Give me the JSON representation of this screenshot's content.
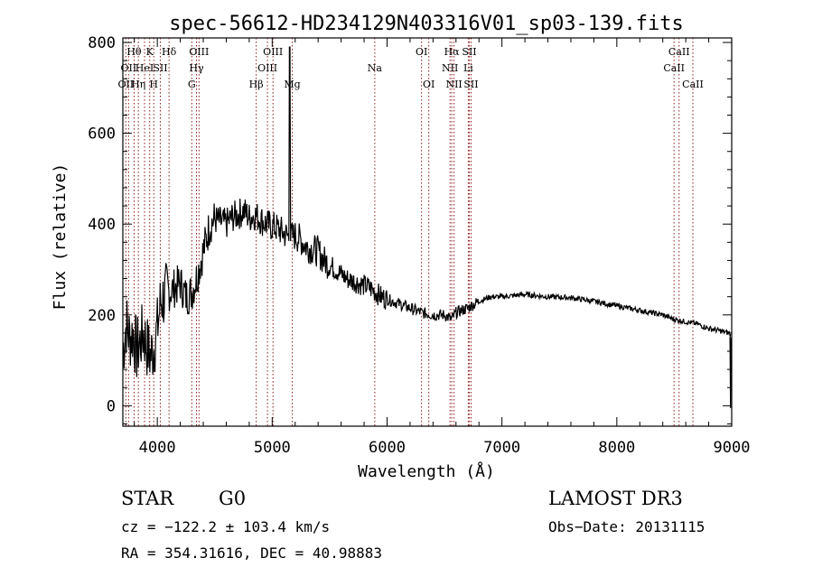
{
  "chart_data": {
    "type": "line",
    "title": "spec-56612-HD234129N403316V01_sp03-139.fits",
    "xlabel": "Wavelength (Å)",
    "ylabel": "Flux (relative)",
    "xlim": [
      3700,
      9000
    ],
    "ylim": [
      -45,
      810
    ],
    "x_ticks": [
      4000,
      5000,
      6000,
      7000,
      8000,
      9000
    ],
    "y_ticks": [
      0,
      200,
      400,
      600,
      800
    ],
    "x_tick_labels": [
      "4000",
      "5000",
      "6000",
      "7000",
      "8000",
      "9000"
    ],
    "y_tick_labels": [
      "0",
      "200",
      "400",
      "600",
      "800"
    ],
    "line_color": "#000000",
    "marker_color": "#8b1a1a",
    "series": [
      {
        "x": [
          3700,
          3730,
          3760,
          3790,
          3820,
          3850,
          3880,
          3910,
          3940,
          3970,
          4000,
          4030,
          4060,
          4100,
          4150,
          4200,
          4250,
          4300,
          4340,
          4380,
          4420,
          4460,
          4500,
          4550,
          4600,
          4650,
          4700,
          4750,
          4800,
          4850,
          4900,
          4950,
          5000,
          5050,
          5100,
          5150,
          5200,
          5250,
          5300,
          5350,
          5400,
          5450,
          5500,
          5550,
          5600,
          5650,
          5700,
          5750,
          5800,
          5850,
          5900,
          5950,
          6000,
          6100,
          6200,
          6300,
          6400,
          6500,
          6562,
          6600,
          6700,
          6800,
          6900,
          7000,
          7200,
          7400,
          7600,
          7800,
          8000,
          8200,
          8400,
          8500,
          8600,
          8700,
          8800,
          8900,
          8980,
          9000
        ],
        "y": [
          120,
          180,
          150,
          160,
          120,
          140,
          160,
          130,
          110,
          130,
          170,
          230,
          240,
          250,
          260,
          270,
          240,
          250,
          280,
          320,
          360,
          400,
          410,
          405,
          400,
          415,
          420,
          430,
          415,
          420,
          410,
          400,
          395,
          390,
          380,
          370,
          375,
          365,
          350,
          345,
          340,
          320,
          310,
          300,
          290,
          280,
          275,
          270,
          265,
          260,
          250,
          240,
          235,
          225,
          215,
          205,
          200,
          200,
          190,
          205,
          215,
          230,
          240,
          240,
          245,
          240,
          238,
          230,
          220,
          210,
          200,
          190,
          185,
          180,
          170,
          165,
          160,
          150
        ]
      }
    ],
    "line_markers": [
      {
        "x": 3726,
        "label": "OII",
        "row": 2
      },
      {
        "x": 3750,
        "label": "OII",
        "row": 1
      },
      {
        "x": 3798,
        "label": "Hθ",
        "row": 0
      },
      {
        "x": 3835,
        "label": "Hη",
        "row": 2
      },
      {
        "x": 3889,
        "label": "HeI",
        "row": 1
      },
      {
        "x": 3934,
        "label": "K",
        "row": 0
      },
      {
        "x": 3969,
        "label": "H",
        "row": 2
      },
      {
        "x": 4026,
        "label": "SII",
        "row": 1
      },
      {
        "x": 4102,
        "label": "Hδ",
        "row": 0
      },
      {
        "x": 4300,
        "label": "G",
        "row": 2
      },
      {
        "x": 4341,
        "label": "Hγ",
        "row": 1
      },
      {
        "x": 4363,
        "label": "OIII",
        "row": 0
      },
      {
        "x": 4861,
        "label": "Hβ",
        "row": 2
      },
      {
        "x": 4959,
        "label": "OIII",
        "row": 1
      },
      {
        "x": 5007,
        "label": "OIII",
        "row": 0
      },
      {
        "x": 5175,
        "label": "Mg",
        "row": 2
      },
      {
        "x": 5893,
        "label": "Na",
        "row": 1
      },
      {
        "x": 6300,
        "label": "OI",
        "row": 0
      },
      {
        "x": 6363,
        "label": "OI",
        "row": 2
      },
      {
        "x": 6548,
        "label": "NII",
        "row": 1
      },
      {
        "x": 6563,
        "label": "Hα",
        "row": 0
      },
      {
        "x": 6583,
        "label": "NII",
        "row": 2
      },
      {
        "x": 6707,
        "label": "Li",
        "row": 1
      },
      {
        "x": 6716,
        "label": "SII",
        "row": 0
      },
      {
        "x": 6731,
        "label": "SII",
        "row": 2
      },
      {
        "x": 8498,
        "label": "CaII",
        "row": 1
      },
      {
        "x": 8542,
        "label": "CaII",
        "row": 0
      },
      {
        "x": 8662,
        "label": "CaII",
        "row": 2
      }
    ]
  },
  "info": {
    "object_class": "STAR",
    "subclass": "G0",
    "survey": "LAMOST DR3",
    "redshift": "cz = −122.2 ± 103.4 km/s",
    "obs_date": "Obs−Date: 20131115",
    "coords": "RA = 354.31616, DEC =  40.98883"
  }
}
